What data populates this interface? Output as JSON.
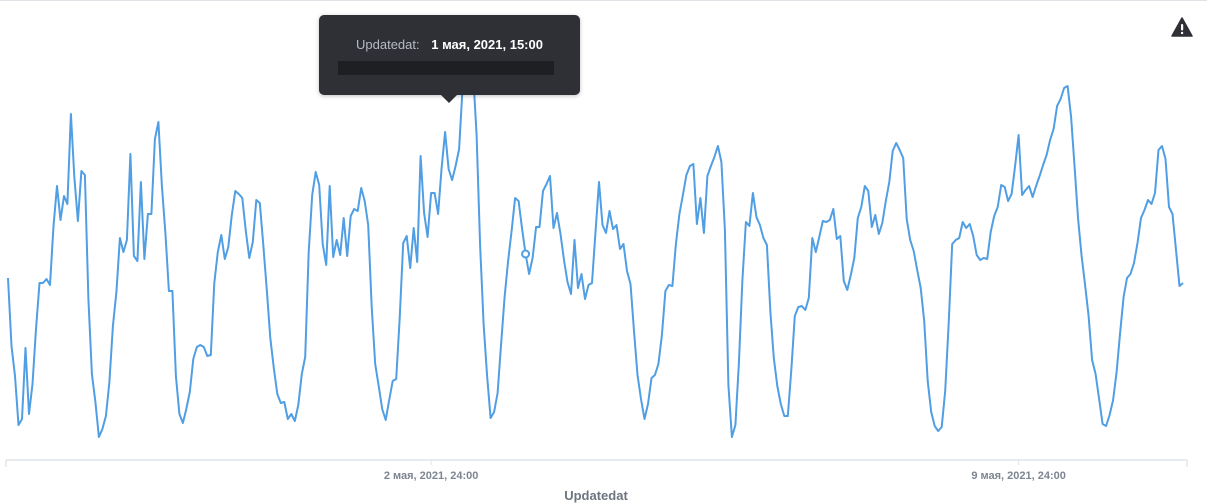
{
  "chart_data": {
    "type": "line",
    "xlabel": "Updatedat",
    "ylabel": "",
    "x_ticks": [
      {
        "label": "2 мая, 2021, 24:00",
        "index": 121
      },
      {
        "label": "9 мая, 2021, 24:00",
        "index": 289
      }
    ],
    "grid": false,
    "series": [
      {
        "color": "#509ee3",
        "values": [
          278,
          346,
          376,
          425,
          419,
          348,
          414,
          384,
          329,
          283,
          283,
          279,
          285,
          226,
          186,
          220,
          196,
          204,
          114,
          178,
          221,
          171,
          175,
          299,
          374,
          402,
          437,
          429,
          416,
          382,
          326,
          292,
          238,
          252,
          240,
          154,
          256,
          261,
          182,
          259,
          214,
          214,
          139,
          122,
          186,
          233,
          291,
          291,
          376,
          414,
          423,
          409,
          392,
          359,
          347,
          345,
          347,
          356,
          355,
          283,
          252,
          235,
          259,
          247,
          215,
          191,
          194,
          198,
          231,
          258,
          242,
          200,
          203,
          245,
          290,
          338,
          368,
          394,
          403,
          402,
          419,
          414,
          421,
          405,
          374,
          357,
          252,
          195,
          172,
          185,
          244,
          265,
          186,
          257,
          240,
          255,
          218,
          256,
          216,
          209,
          211,
          188,
          201,
          225,
          307,
          364,
          386,
          409,
          420,
          400,
          381,
          379,
          318,
          243,
          236,
          268,
          228,
          262,
          156,
          213,
          237,
          193,
          193,
          214,
          168,
          132,
          169,
          180,
          166,
          149,
          87,
          78,
          64,
          73,
          135,
          245,
          324,
          376,
          418,
          412,
          393,
          344,
          297,
          261,
          231,
          198,
          201,
          229,
          254,
          274,
          258,
          227,
          227,
          191,
          184,
          176,
          228,
          213,
          234,
          260,
          282,
          294,
          240,
          288,
          274,
          299,
          285,
          283,
          232,
          182,
          225,
          233,
          211,
          229,
          225,
          249,
          244,
          271,
          284,
          331,
          375,
          399,
          419,
          404,
          378,
          375,
          364,
          335,
          291,
          285,
          286,
          244,
          214,
          195,
          175,
          166,
          164,
          224,
          198,
          233,
          176,
          166,
          157,
          146,
          162,
          230,
          385,
          437,
          425,
          363,
          280,
          222,
          226,
          193,
          217,
          225,
          238,
          245,
          312,
          358,
          386,
          404,
          416,
          416,
          370,
          316,
          307,
          306,
          310,
          298,
          238,
          252,
          237,
          221,
          222,
          220,
          209,
          239,
          236,
          281,
          290,
          275,
          258,
          218,
          207,
          186,
          191,
          227,
          215,
          234,
          223,
          201,
          182,
          151,
          143,
          150,
          158,
          219,
          240,
          251,
          270,
          288,
          321,
          381,
          412,
          426,
          431,
          427,
          391,
          323,
          244,
          240,
          238,
          222,
          228,
          224,
          236,
          255,
          260,
          258,
          259,
          232,
          216,
          207,
          185,
          187,
          201,
          194,
          166,
          135,
          195,
          190,
          186,
          197,
          186,
          176,
          165,
          155,
          140,
          129,
          106,
          99,
          88,
          86,
          117,
          167,
          219,
          256,
          285,
          316,
          360,
          374,
          399,
          424,
          426,
          415,
          400,
          372,
          333,
          297,
          278,
          274,
          263,
          243,
          218,
          210,
          200,
          204,
          193,
          150,
          146,
          159,
          207,
          214,
          250,
          286,
          283,
          272,
          256,
          288,
          287,
          215,
          265,
          219,
          226,
          212,
          151,
          159,
          211,
          213,
          232,
          278,
          363,
          411,
          417,
          353,
          263,
          211,
          198,
          212,
          208,
          188,
          195,
          159,
          130,
          130,
          153,
          223,
          221,
          223,
          271,
          293,
          269,
          270,
          301,
          252,
          308,
          306,
          297,
          239,
          235,
          260,
          270,
          296,
          326,
          300,
          263,
          238,
          203,
          196,
          182,
          199,
          249,
          268,
          269,
          286,
          299,
          355,
          403,
          414,
          411,
          400,
          375,
          336,
          312,
          302,
          298,
          294,
          216,
          235,
          252,
          263,
          280,
          294,
          285,
          294,
          263,
          258,
          216,
          180,
          187,
          227,
          219,
          213,
          178,
          181,
          197,
          217,
          223,
          184,
          187,
          232,
          239,
          268,
          264,
          255,
          287,
          255,
          274,
          270,
          292,
          314,
          316,
          320,
          293,
          266,
          275,
          232,
          239,
          221,
          265,
          209,
          229,
          214,
          244,
          275,
          282,
          300,
          308,
          325,
          330,
          330,
          347,
          341,
          318,
          305,
          288,
          280,
          269,
          252,
          210,
          219,
          227,
          231,
          244,
          278,
          296,
          305,
          270,
          217,
          204,
          202,
          205,
          200,
          204,
          226,
          225,
          230,
          229,
          207,
          212,
          186,
          226,
          211,
          245,
          242,
          262,
          271,
          277,
          280,
          299,
          313,
          318,
          345,
          296,
          260,
          242,
          250,
          237,
          215,
          226,
          256,
          255,
          248,
          245,
          252,
          245,
          249,
          242,
          251,
          240,
          260,
          274,
          289,
          300,
          306,
          322,
          303,
          278,
          267,
          257,
          245,
          229,
          232,
          204,
          217,
          208,
          205,
          199,
          199,
          198,
          198,
          202,
          241,
          269,
          303,
          315,
          277,
          277,
          237,
          254,
          255,
          252,
          229,
          245,
          263,
          266,
          265,
          263,
          270,
          244,
          228,
          236,
          212,
          215,
          175,
          174,
          185,
          175,
          153,
          134,
          121,
          136,
          111,
          112,
          105,
          111,
          126,
          140,
          124,
          146,
          119,
          134,
          138,
          153,
          150,
          137,
          112,
          106,
          107,
          114,
          94,
          107,
          115,
          147,
          141,
          169,
          187,
          208,
          207,
          218,
          221,
          206,
          232,
          214,
          220,
          218,
          201,
          213,
          225,
          221,
          209,
          193,
          204,
          247,
          238,
          233,
          219,
          219,
          208,
          187,
          173,
          155,
          148,
          146,
          144,
          145,
          127,
          123,
          109,
          125,
          136,
          142,
          140,
          132,
          137,
          138,
          146,
          149,
          137,
          119,
          107,
          96,
          93,
          92,
          92,
          94,
          100,
          101,
          85,
          79,
          84,
          95,
          99,
          97,
          116,
          126,
          141,
          133,
          149,
          133,
          107,
          100,
          114,
          152,
          138,
          126,
          138,
          138,
          115,
          150,
          164,
          125,
          117,
          132,
          135,
          137,
          154,
          124,
          142,
          131,
          119,
          103,
          112,
          130,
          152,
          141,
          140,
          129,
          141,
          125,
          117,
          116,
          129,
          155,
          157,
          143,
          131,
          143,
          142,
          142,
          154,
          158,
          178,
          177,
          168,
          183,
          174,
          155,
          161,
          155,
          160,
          164,
          169,
          165,
          163,
          172,
          185,
          188,
          182,
          175,
          173,
          158,
          158,
          145,
          148,
          148,
          154,
          160,
          168,
          171,
          173,
          174,
          171,
          156,
          155,
          159,
          162,
          164,
          179,
          174,
          173,
          169,
          182,
          174,
          176,
          177,
          173,
          163,
          181,
          168,
          166,
          172,
          180,
          181,
          180,
          176,
          182,
          188,
          187,
          190,
          185,
          190,
          188,
          191,
          196,
          193,
          184,
          187,
          186,
          183,
          176,
          168,
          163,
          163,
          170,
          164,
          168,
          162,
          173,
          174,
          168,
          162,
          162,
          152,
          151,
          152,
          142,
          139,
          123,
          122,
          118,
          118,
          115,
          118,
          132,
          131,
          120,
          128,
          115,
          121,
          123,
          130,
          129,
          138,
          147,
          147,
          139,
          137,
          153,
          155,
          144,
          157,
          159,
          161,
          156,
          160,
          162,
          153,
          147,
          143,
          145,
          150,
          157,
          160,
          166,
          173,
          175,
          175,
          178,
          182,
          183,
          185,
          187,
          186,
          187,
          186,
          186,
          179,
          180,
          176,
          180,
          185,
          180,
          178,
          174,
          175,
          177,
          172,
          166,
          170,
          166,
          164,
          159,
          152,
          151,
          148,
          141,
          141,
          131,
          124,
          115,
          112,
          108,
          107,
          109,
          108,
          105,
          103,
          101,
          102,
          103,
          112,
          106,
          104,
          105,
          103,
          118,
          115,
          114,
          116,
          113,
          116,
          105,
          103,
          104,
          104,
          107,
          103,
          107,
          113,
          115,
          117,
          116,
          120,
          118,
          118,
          124,
          129,
          126,
          130,
          132,
          133,
          129,
          129,
          129,
          129,
          126,
          128,
          127,
          129,
          130,
          130,
          134,
          137,
          142,
          148,
          148,
          151,
          151,
          154,
          152,
          153,
          154,
          152,
          155,
          152,
          153,
          155,
          158,
          156,
          159,
          161,
          163,
          161,
          160,
          158,
          154,
          156,
          154,
          152,
          146,
          141,
          137,
          133,
          129,
          129,
          128,
          130,
          126,
          126,
          127,
          128,
          130,
          135,
          136,
          141,
          143,
          145,
          143,
          146,
          145,
          147,
          148,
          151,
          151,
          152,
          152,
          152,
          155,
          153,
          155,
          155,
          157,
          156,
          160,
          159,
          157,
          156,
          152,
          149,
          147,
          146,
          147,
          149,
          145,
          143,
          141,
          140,
          137,
          135,
          136,
          135,
          133,
          134,
          133,
          134,
          137,
          139,
          140,
          141,
          144,
          146,
          145,
          146,
          147,
          150,
          150,
          149,
          148,
          146,
          145,
          146,
          145,
          147,
          149,
          150,
          150,
          152,
          151,
          153,
          153,
          154,
          153,
          152,
          151,
          149,
          147,
          145,
          143,
          141,
          140,
          139,
          138,
          137,
          136,
          135,
          136,
          135,
          135,
          136,
          137,
          137,
          137,
          138,
          140,
          140,
          141,
          142,
          142,
          142,
          142,
          141,
          142,
          141,
          141,
          142,
          141,
          141,
          142,
          142,
          141,
          142,
          141,
          141,
          141,
          141,
          141
        ]
      }
    ],
    "tooltip": {
      "point_index": 148,
      "key": "Updatedat:",
      "value": "1 мая, 2021, 15:00"
    }
  },
  "icons": {
    "warning": "warning-icon"
  }
}
